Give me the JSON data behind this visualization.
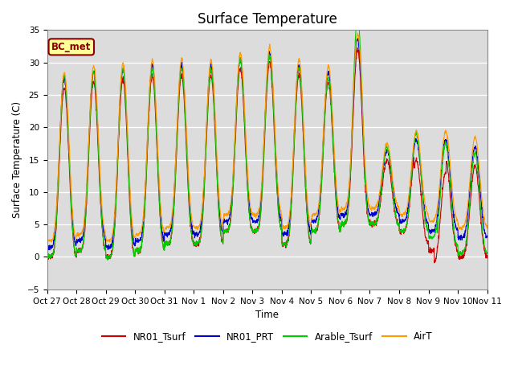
{
  "title": "Surface Temperature",
  "ylabel": "Surface Temperature (C)",
  "xlabel": "Time",
  "ylim": [
    -5,
    35
  ],
  "background_color": "#dcdcdc",
  "annotation_text": "BC_met",
  "annotation_bg": "#ffff99",
  "annotation_border": "#8b0000",
  "series_colors": [
    "#cc0000",
    "#0000cc",
    "#00cc00",
    "#ff9900"
  ],
  "series_labels": [
    "NR01_Tsurf",
    "NR01_PRT",
    "Arable_Tsurf",
    "AirT"
  ],
  "tick_labels": [
    "Oct 27",
    "Oct 28",
    "Oct 29",
    "Oct 30",
    "Oct 31",
    "Nov 1",
    "Nov 2",
    "Nov 3",
    "Nov 4",
    "Nov 5",
    "Nov 6",
    "Nov 7",
    "Nov 8",
    "Nov 9",
    "Nov 10",
    "Nov 11"
  ],
  "num_days": 15,
  "points_per_day": 144
}
